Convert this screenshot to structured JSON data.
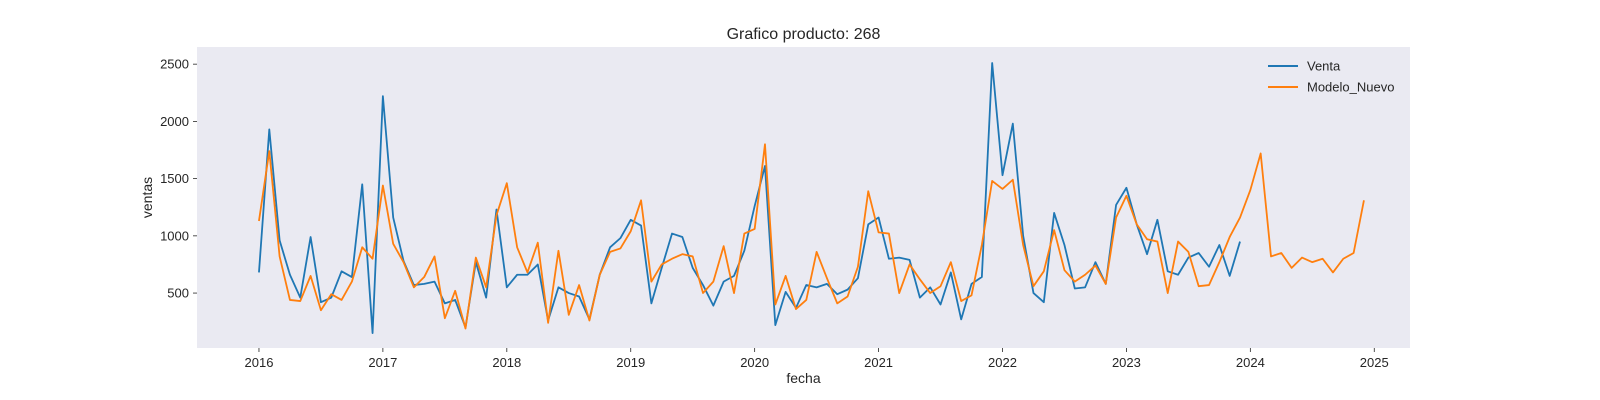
{
  "chart_data": {
    "type": "line",
    "title": "Grafico producto: 268",
    "xlabel": "fecha",
    "ylabel": "ventas",
    "xlim": [
      "2015-07-01",
      "2025-04-15"
    ],
    "ylim": [
      20,
      2650
    ],
    "x_ticks": [
      "2016",
      "2017",
      "2018",
      "2019",
      "2020",
      "2021",
      "2022",
      "2023",
      "2024",
      "2025"
    ],
    "y_ticks": [
      500,
      1000,
      1500,
      2000,
      2500
    ],
    "grid": false,
    "legend_position": "top-right",
    "background": "#eaeaf2",
    "series": [
      {
        "name": "Venta",
        "color": "#1f77b4",
        "start": "2016-01",
        "values": [
          680,
          1930,
          960,
          660,
          460,
          990,
          420,
          460,
          690,
          640,
          1450,
          150,
          2220,
          1160,
          780,
          570,
          580,
          600,
          410,
          440,
          200,
          770,
          460,
          1230,
          550,
          660,
          660,
          750,
          260,
          550,
          500,
          470,
          270,
          660,
          900,
          980,
          1140,
          1090,
          410,
          720,
          1020,
          990,
          720,
          570,
          390,
          600,
          650,
          870,
          1260,
          1610,
          220,
          510,
          370,
          570,
          550,
          580,
          490,
          530,
          630,
          1100,
          1160,
          800,
          810,
          790,
          460,
          550,
          400,
          680,
          270,
          580,
          640,
          2510,
          1530,
          1980,
          1000,
          500,
          420,
          1200,
          920,
          540,
          550,
          770,
          580,
          1270,
          1420,
          1100,
          840,
          1140,
          690,
          660,
          810,
          850,
          730,
          920,
          650,
          950
        ]
      },
      {
        "name": "Modelo_Nuevo",
        "color": "#ff7f0e",
        "start": "2016-01",
        "values": [
          1130,
          1740,
          820,
          440,
          430,
          650,
          350,
          490,
          440,
          600,
          900,
          800,
          1440,
          930,
          770,
          550,
          640,
          820,
          280,
          520,
          190,
          810,
          550,
          1180,
          1460,
          900,
          680,
          940,
          240,
          870,
          310,
          570,
          260,
          660,
          860,
          890,
          1040,
          1310,
          600,
          750,
          800,
          840,
          820,
          500,
          600,
          910,
          500,
          1020,
          1060,
          1800,
          400,
          650,
          360,
          440,
          860,
          630,
          410,
          470,
          730,
          1390,
          1030,
          1020,
          500,
          750,
          620,
          500,
          560,
          770,
          430,
          480,
          920,
          1480,
          1410,
          1490,
          920,
          560,
          690,
          1050,
          700,
          600,
          660,
          740,
          580,
          1160,
          1350,
          1100,
          970,
          950,
          500,
          950,
          860,
          560,
          570,
          770,
          990,
          1160,
          1400,
          1720,
          820,
          850,
          720,
          810,
          770,
          800,
          680,
          800,
          850,
          1310
        ]
      }
    ]
  }
}
